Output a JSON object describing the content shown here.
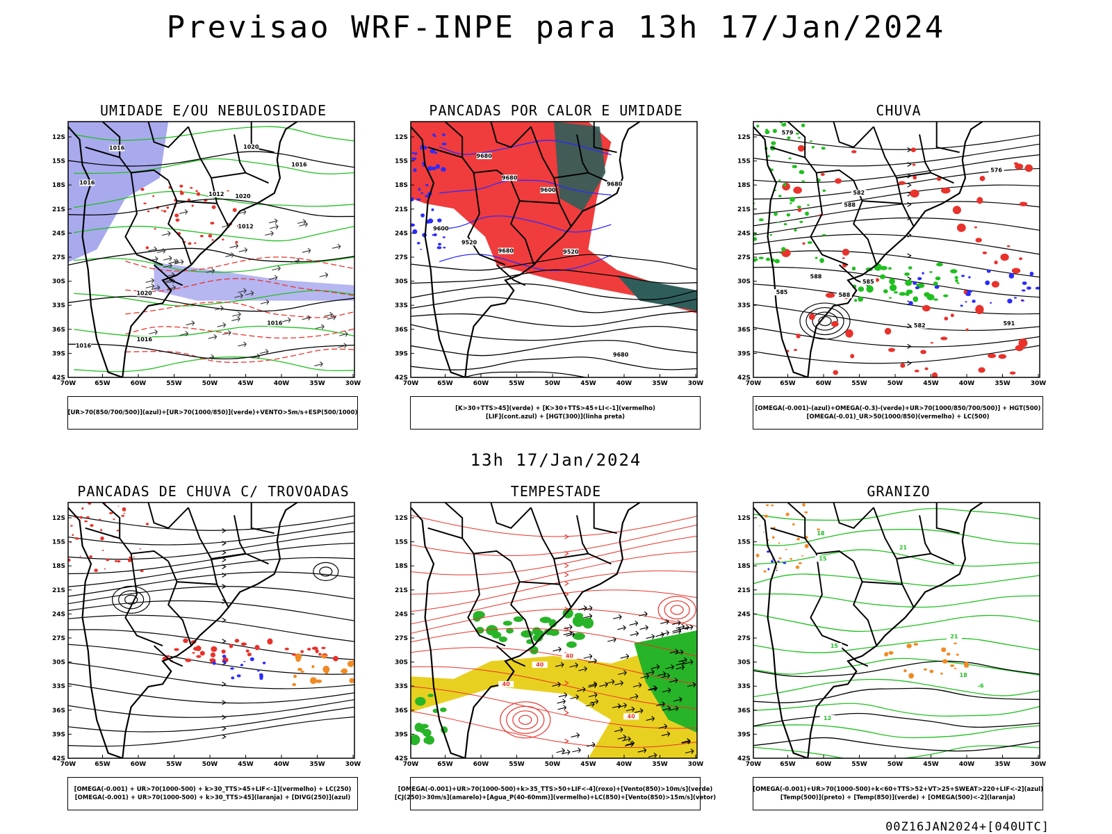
{
  "title": "Previsao WRF-INPE  para 13h 17/Jan/2024",
  "subtitle": "13h 17/Jan/2024",
  "run_stamp": "00Z16JAN2024+[040UTC]",
  "axes": {
    "lat_labels": [
      "12S",
      "15S",
      "18S",
      "21S",
      "24S",
      "27S",
      "30S",
      "33S",
      "36S",
      "39S",
      "42S"
    ],
    "lon_labels": [
      "70W",
      "65W",
      "60W",
      "55W",
      "50W",
      "45W",
      "40W",
      "35W",
      "30W"
    ]
  },
  "panels": [
    {
      "title": "UMIDADE E/OU NEBULOSIDADE",
      "legend": [
        "[UR>70(850/700/500)](azul)+[UR>70(1000/850)](verde)+VENTO>5m/s+ESP(500/1000)"
      ],
      "contour_labels": [
        "1012",
        "1016",
        "1020",
        "1016",
        "1020",
        "1012",
        "1016",
        "1016",
        "1016",
        "1020",
        "1016"
      ],
      "colors": {
        "primary": "#a9a9ee",
        "secondary": "#1fbf1f",
        "accent": "#e8322b"
      }
    },
    {
      "title": "PANCADAS POR CALOR E UMIDADE",
      "legend": [
        "[K>30+TTS>45](verde)  +  [K>30+TTS>45+LI<-1](vermelho)",
        "[LIF](cont.azul)  +  [HGT(300)](linha preta)"
      ],
      "contour_labels": [
        "9680",
        "9680",
        "9680",
        "9680",
        "9680",
        "9600",
        "9600",
        "9520",
        "9520"
      ],
      "colors": {
        "primary": "#f03c3c",
        "secondary": "#2f5e5a",
        "accent": "#2b2bff"
      }
    },
    {
      "title": "CHUVA",
      "legend": [
        "[OMEGA(-0.001)-(azul)+OMEGA(-0.3)-(verde)+UR>70(1000/850/700/500)] + HGT(500)",
        "[OMEGA(-0.01)_UR>50(1000/850)(vermelho) + LC(500)"
      ],
      "contour_labels": [
        "588",
        "585",
        "588",
        "591",
        "585",
        "582",
        "579",
        "588",
        "582",
        "576"
      ],
      "colors": {
        "primary": "#e8322b",
        "secondary": "#1fbf1f",
        "accent": "#2b2bff"
      }
    },
    {
      "title": "PANCADAS DE CHUVA C/ TROVOADAS",
      "legend": [
        "[OMEGA(-0.001) + UR>70(1000-500) + k>30_TTS>45+LIF<-1](vermelho) + LC(250)",
        "[OMEGA(-0.001) + UR>70(1000-500) + k>30_TTS>45](laranja) + [DIVG(250)](azul)"
      ],
      "contour_labels": [],
      "colors": {
        "primary": "#e8322b",
        "secondary": "#f08a24",
        "accent": "#2b2bff"
      }
    },
    {
      "title": "TEMPESTADE",
      "legend": [
        "[OMEGA(-0.001)+UR>70(1000-500)+k>35_TTS>50+LIF<-4](roxo)+[Vento(850)>10m/s](verde)",
        "[CJ(250)>30m/s](amarelo)+[Agua_P(40-60mm)](vermelho)+LC(850)+[Vento(850)>15m/s](vetor)"
      ],
      "contour_labels": [
        "40",
        "40",
        "40",
        "40"
      ],
      "colors": {
        "primary": "#e8d020",
        "secondary": "#28b428",
        "accent": "#e8322b"
      }
    },
    {
      "title": "GRANIZO",
      "legend": [
        "[OMEGA(-0.001)+UR>70(1000-500)+k<60+TTS>52+VT>25+SWEAT>220+LIF<-2](azul)",
        "[Temp(500)](preto) + [Temp(850)](verde) + [OMEGA(500)<-2](laranja)"
      ],
      "contour_labels": [
        "21",
        "15",
        "18",
        "21",
        "12",
        "18",
        "15",
        "-6"
      ],
      "colors": {
        "primary": "#1fbf1f",
        "secondary": "#f08a24",
        "accent": "#000000"
      }
    }
  ]
}
